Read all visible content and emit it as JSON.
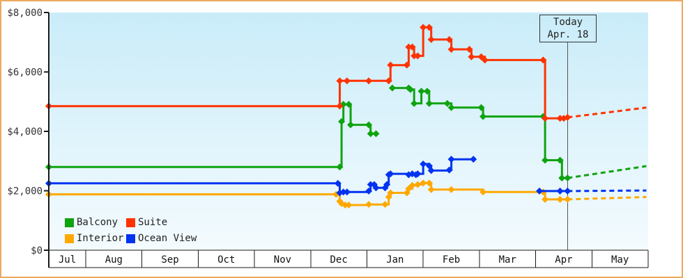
{
  "window": {
    "border_color": "#ECA95F",
    "background_color": "#FFFFFF"
  },
  "plot": {
    "bg_top_color": "#C9ECF9",
    "bg_bottom_color": "#F4FBFE",
    "axis_color": "#1A1A1A",
    "tick_label_color": "#333333",
    "month_label_color": "#111111",
    "today_line_color": "#555555"
  },
  "y_axis": {
    "ticks": [
      {
        "label": "$0",
        "value": 0
      },
      {
        "label": "$2,000",
        "value": 2000
      },
      {
        "label": "$4,000",
        "value": 4000
      },
      {
        "label": "$6,000",
        "value": 6000
      },
      {
        "label": "$8,000",
        "value": 8000
      }
    ]
  },
  "x_axis": {
    "months": [
      "Jul",
      "Aug",
      "Sep",
      "Oct",
      "Nov",
      "Dec",
      "Jan",
      "Feb",
      "Mar",
      "Apr",
      "May"
    ]
  },
  "today": {
    "label_line1": "Today",
    "label_line2": "Apr. 18",
    "month": "Apr",
    "day": 18
  },
  "legend": {
    "items": [
      {
        "label": "Balcony",
        "color": "#0FA30F"
      },
      {
        "label": "Suite",
        "color": "#FF3300"
      },
      {
        "label": "Interior",
        "color": "#FFA800"
      },
      {
        "label": "Ocean View",
        "color": "#0033F0"
      }
    ]
  },
  "chart_data": {
    "type": "line",
    "step": true,
    "marker": "diamond",
    "title": "",
    "ylim": [
      0,
      8000
    ],
    "x_range": "Jul 12 - May 31",
    "grid": false,
    "legend_position": "bottom-left",
    "series": [
      {
        "name": "Interior",
        "color": "#FFA800",
        "segments": [
          [
            [
              "Jul",
              12,
              1880
            ],
            [
              "Dec",
              15,
              1880
            ],
            [
              "Dec",
              17,
              1650
            ],
            [
              "Dec",
              18,
              1570
            ],
            [
              "Dec",
              20,
              1520
            ],
            [
              "Dec",
              22,
              1520
            ],
            [
              "Jan",
              2,
              1540
            ],
            [
              "Jan",
              11,
              1540
            ],
            [
              "Jan",
              13,
              1790
            ],
            [
              "Jan",
              14,
              1930
            ],
            [
              "Jan",
              23,
              1930
            ],
            [
              "Jan",
              24,
              2070
            ],
            [
              "Jan",
              26,
              2180
            ],
            [
              "Jan",
              29,
              2210
            ],
            [
              "Feb",
              1,
              2260
            ],
            [
              "Feb",
              4,
              2260
            ],
            [
              "Feb",
              5,
              2040
            ],
            [
              "Feb",
              15,
              2040
            ],
            [
              "Mar",
              3,
              1960
            ],
            [
              "Apr",
              5,
              1960
            ],
            [
              "Apr",
              6,
              1710
            ],
            [
              "Apr",
              14,
              1710
            ],
            [
              "Apr",
              18,
              1710
            ]
          ]
        ],
        "projection": [
          [
            "Apr",
            18,
            1710
          ],
          [
            "May",
            31,
            1790
          ]
        ]
      },
      {
        "name": "Ocean View",
        "color": "#0033F0",
        "segments": [
          [
            [
              "Jul",
              12,
              2250
            ],
            [
              "Dec",
              16,
              2250
            ],
            [
              "Dec",
              17,
              1930
            ],
            [
              "Dec",
              19,
              1960
            ],
            [
              "Dec",
              21,
              1960
            ],
            [
              "Jan",
              2,
              1990
            ],
            [
              "Jan",
              3,
              2210
            ],
            [
              "Jan",
              5,
              2210
            ],
            [
              "Jan",
              6,
              2100
            ],
            [
              "Jan",
              11,
              2100
            ],
            [
              "Jan",
              12,
              2210
            ],
            [
              "Jan",
              13,
              2540
            ],
            [
              "Jan",
              14,
              2570
            ],
            [
              "Jan",
              24,
              2540
            ],
            [
              "Jan",
              26,
              2570
            ],
            [
              "Jan",
              28,
              2540
            ],
            [
              "Jan",
              29,
              2570
            ],
            [
              "Feb",
              1,
              2900
            ],
            [
              "Feb",
              4,
              2840
            ],
            [
              "Feb",
              5,
              2680
            ],
            [
              "Feb",
              14,
              2700
            ],
            [
              "Feb",
              15,
              3060
            ],
            [
              "Feb",
              26,
              3060
            ]
          ],
          [
            [
              "Apr",
              3,
              1990
            ],
            [
              "Apr",
              14,
              1990
            ],
            [
              "Apr",
              18,
              1990
            ]
          ]
        ],
        "projection": [
          [
            "Apr",
            18,
            1990
          ],
          [
            "May",
            31,
            2010
          ]
        ]
      },
      {
        "name": "Balcony",
        "color": "#0FA30F",
        "segments": [
          [
            [
              "Jul",
              12,
              2800
            ],
            [
              "Dec",
              17,
              2800
            ],
            [
              "Dec",
              18,
              4330
            ],
            [
              "Dec",
              19,
              4910
            ],
            [
              "Dec",
              22,
              4910
            ],
            [
              "Dec",
              23,
              4220
            ],
            [
              "Jan",
              2,
              4220
            ],
            [
              "Jan",
              3,
              3920
            ],
            [
              "Jan",
              6,
              3920
            ]
          ],
          [
            [
              "Jan",
              15,
              5460
            ],
            [
              "Jan",
              24,
              5460
            ],
            [
              "Jan",
              25,
              5410
            ],
            [
              "Jan",
              27,
              4940
            ],
            [
              "Jan",
              31,
              5350
            ],
            [
              "Feb",
              3,
              5350
            ],
            [
              "Feb",
              4,
              4940
            ],
            [
              "Feb",
              13,
              4940
            ],
            [
              "Feb",
              15,
              4800
            ],
            [
              "Mar",
              2,
              4800
            ],
            [
              "Mar",
              3,
              4500
            ],
            [
              "Apr",
              5,
              4500
            ],
            [
              "Apr",
              6,
              3030
            ],
            [
              "Apr",
              14,
              3030
            ],
            [
              "Apr",
              15,
              2430
            ],
            [
              "Apr",
              18,
              2430
            ]
          ]
        ],
        "projection": [
          [
            "Apr",
            18,
            2430
          ],
          [
            "May",
            31,
            2830
          ]
        ]
      },
      {
        "name": "Suite",
        "color": "#FF3300",
        "segments": [
          [
            [
              "Jul",
              12,
              4850
            ],
            [
              "Dec",
              17,
              4850
            ],
            [
              "Dec",
              17,
              5700
            ],
            [
              "Dec",
              21,
              5700
            ],
            [
              "Jan",
              2,
              5700
            ],
            [
              "Jan",
              13,
              5700
            ],
            [
              "Jan",
              14,
              6230
            ],
            [
              "Jan",
              23,
              6230
            ],
            [
              "Jan",
              24,
              6840
            ],
            [
              "Jan",
              26,
              6840
            ],
            [
              "Jan",
              27,
              6540
            ],
            [
              "Jan",
              29,
              6540
            ],
            [
              "Feb",
              1,
              7500
            ],
            [
              "Feb",
              4,
              7500
            ],
            [
              "Feb",
              5,
              7090
            ],
            [
              "Feb",
              14,
              7090
            ],
            [
              "Feb",
              15,
              6760
            ],
            [
              "Feb",
              24,
              6760
            ],
            [
              "Feb",
              25,
              6510
            ],
            [
              "Mar",
              2,
              6510
            ],
            [
              "Mar",
              4,
              6400
            ],
            [
              "Apr",
              5,
              6400
            ],
            [
              "Apr",
              6,
              4440
            ],
            [
              "Apr",
              14,
              4440
            ],
            [
              "Apr",
              16,
              4440
            ],
            [
              "Apr",
              18,
              4470
            ]
          ]
        ],
        "projection": [
          [
            "Apr",
            18,
            4470
          ],
          [
            "May",
            31,
            4800
          ]
        ]
      }
    ]
  }
}
